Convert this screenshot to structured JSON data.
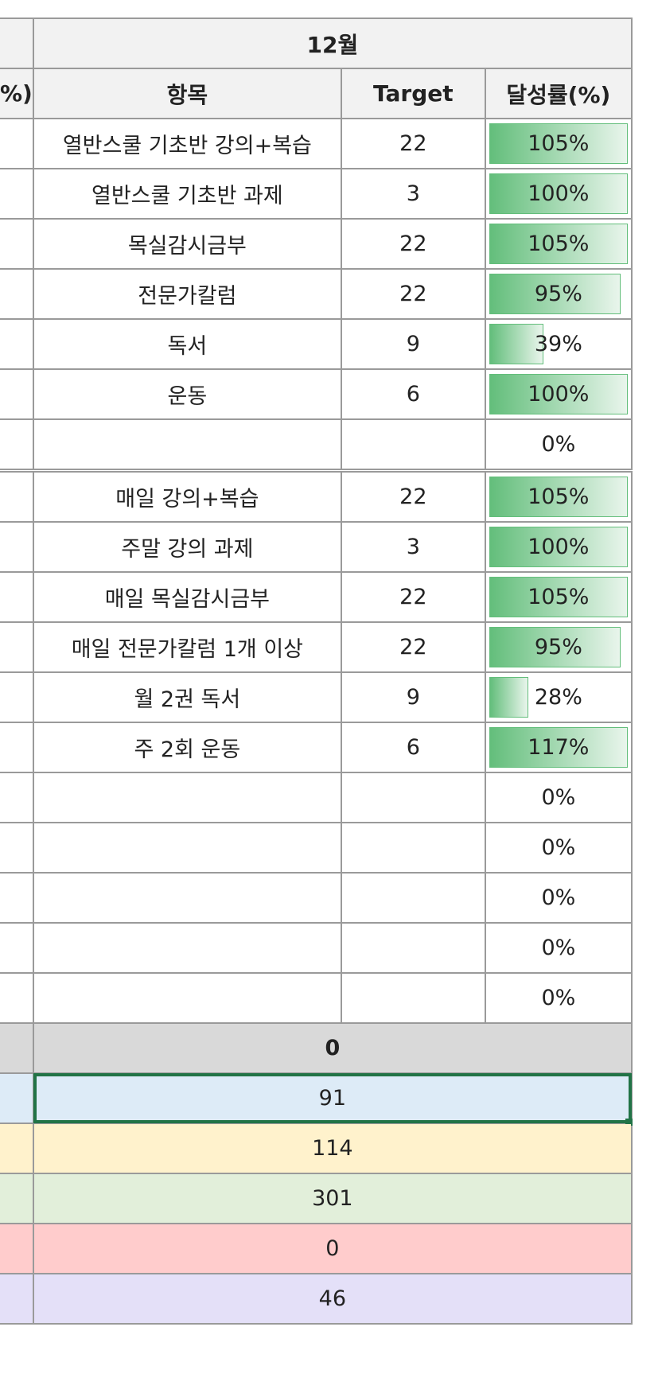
{
  "header": {
    "month": "12월",
    "left_fragment": "%)",
    "col_item": "항목",
    "col_target": "Target",
    "col_rate": "달성률(%)"
  },
  "group1": [
    {
      "item": "열반스쿨 기초반 강의+복습",
      "target": "22",
      "rate": 105
    },
    {
      "item": "열반스쿨 기초반 과제",
      "target": "3",
      "rate": 100
    },
    {
      "item": "목실감시금부",
      "target": "22",
      "rate": 105
    },
    {
      "item": "전문가칼럼",
      "target": "22",
      "rate": 95
    },
    {
      "item": "독서",
      "target": "9",
      "rate": 39
    },
    {
      "item": "운동",
      "target": "6",
      "rate": 100
    },
    {
      "item": "",
      "target": "",
      "rate": 0
    }
  ],
  "group2": [
    {
      "item": "매일 강의+복습",
      "target": "22",
      "rate": 105
    },
    {
      "item": "주말 강의 과제",
      "target": "3",
      "rate": 100
    },
    {
      "item": "매일 목실감시금부",
      "target": "22",
      "rate": 105
    },
    {
      "item": "매일 전문가칼럼 1개 이상",
      "target": "22",
      "rate": 95
    },
    {
      "item": "월 2권 독서",
      "target": "9",
      "rate": 28
    },
    {
      "item": "주 2회 운동",
      "target": "6",
      "rate": 117
    },
    {
      "item": "",
      "target": "",
      "rate": 0
    },
    {
      "item": "",
      "target": "",
      "rate": 0
    },
    {
      "item": "",
      "target": "",
      "rate": 0
    },
    {
      "item": "",
      "target": "",
      "rate": 0
    },
    {
      "item": "",
      "target": "",
      "rate": 0
    }
  ],
  "total": "0",
  "summary": [
    {
      "value": "91",
      "color": "#ddebf7",
      "selected": true
    },
    {
      "value": "114",
      "color": "#fff2cc"
    },
    {
      "value": "301",
      "color": "#e2efda"
    },
    {
      "value": "0",
      "color": "#ffcccc"
    },
    {
      "value": "46",
      "color": "#e4e0f8"
    }
  ],
  "colors": {
    "bar": "#63be7b",
    "selection": "#217346",
    "header_bg": "#f2f2f2",
    "total_bg": "#d9d9d9"
  }
}
